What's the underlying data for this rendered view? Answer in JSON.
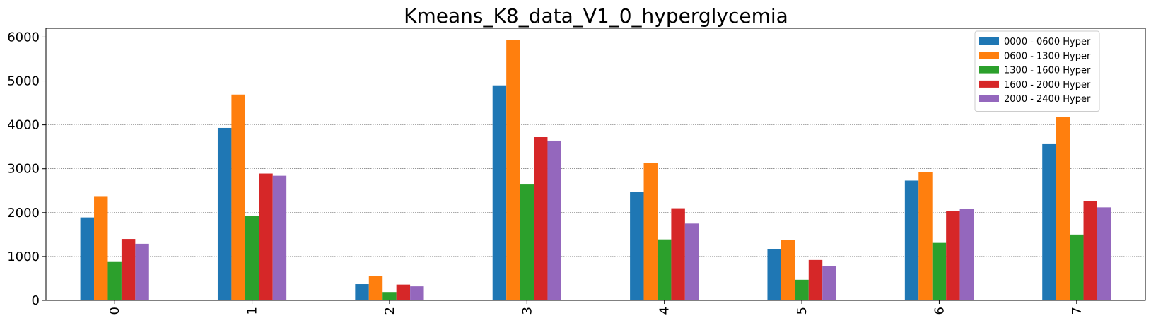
{
  "chart_data": {
    "type": "bar",
    "title": "Kmeans_K8_data_V1_0_hyperglycemia",
    "xlabel": "",
    "ylabel": "",
    "categories": [
      "0",
      "1",
      "2",
      "3",
      "4",
      "5",
      "6",
      "7"
    ],
    "ylim": [
      0,
      6200
    ],
    "yticks": [
      0,
      1000,
      2000,
      3000,
      4000,
      5000,
      6000
    ],
    "grid": "y-dotted",
    "legend_position": "top-right",
    "series": [
      {
        "name": "0000 - 0600 Hyper",
        "color": "#1f77b4",
        "values": [
          1890,
          3930,
          370,
          4900,
          2470,
          1160,
          2730,
          3560
        ]
      },
      {
        "name": "0600 - 1300 Hyper",
        "color": "#ff7f0e",
        "values": [
          2360,
          4690,
          550,
          5930,
          3140,
          1370,
          2930,
          4180
        ]
      },
      {
        "name": "1300 - 1600 Hyper",
        "color": "#2ca02c",
        "values": [
          890,
          1920,
          190,
          2640,
          1390,
          470,
          1310,
          1500
        ]
      },
      {
        "name": "1600 - 2000 Hyper",
        "color": "#d62728",
        "values": [
          1400,
          2890,
          360,
          3720,
          2100,
          920,
          2030,
          2260
        ]
      },
      {
        "name": "2000 - 2400 Hyper",
        "color": "#9467bd",
        "values": [
          1290,
          2840,
          320,
          3640,
          1750,
          780,
          2090,
          2120
        ]
      }
    ]
  }
}
